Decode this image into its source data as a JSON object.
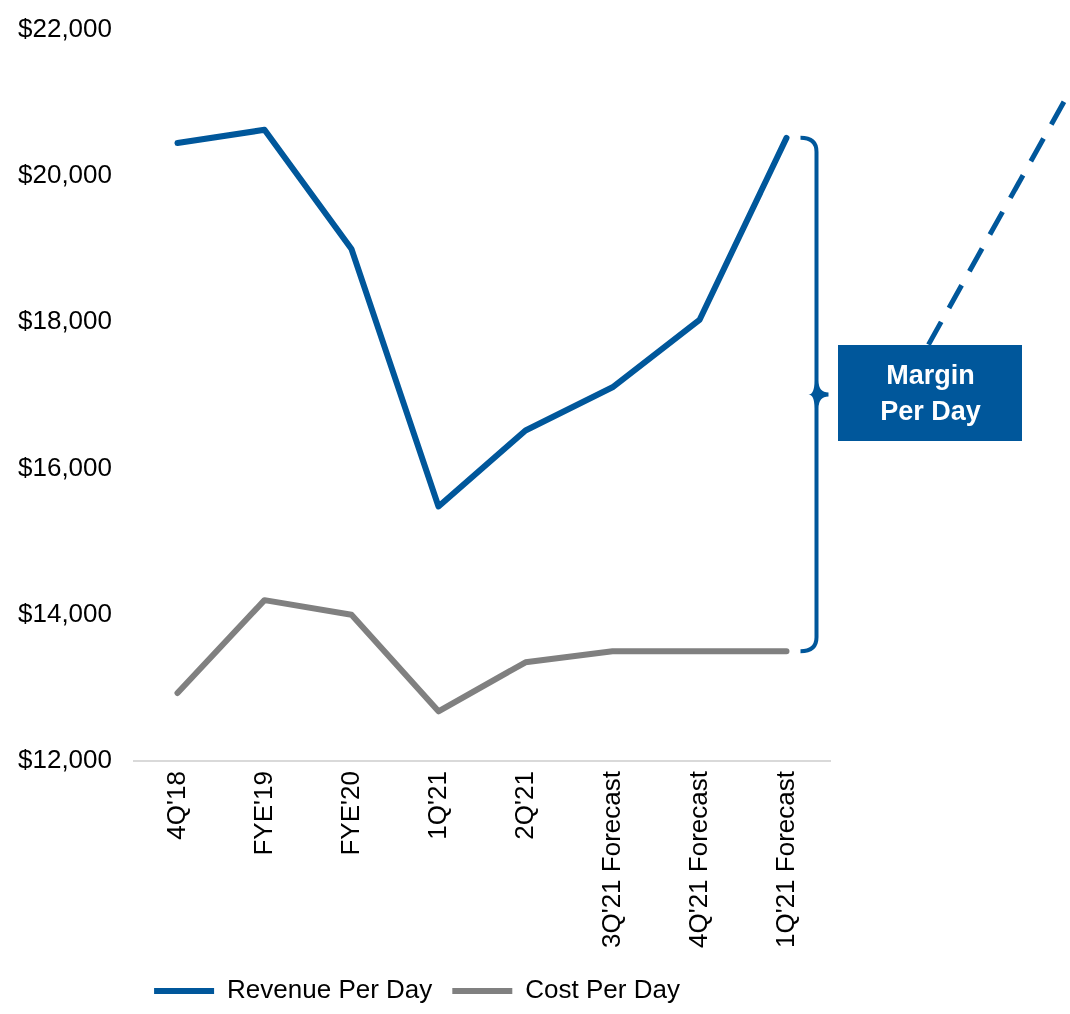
{
  "chart_data": {
    "type": "line",
    "categories": [
      "4Q'18",
      "FYE'19",
      "FYE'20",
      "1Q'21",
      "2Q'21",
      "3Q'21 Forecast",
      "4Q'21 Forecast",
      "1Q'21 Forecast"
    ],
    "series": [
      {
        "name": "Revenue Per Day",
        "color": "#00579b",
        "values": [
          20450,
          20630,
          19000,
          15480,
          16520,
          17110,
          18030,
          20520
        ]
      },
      {
        "name": "Cost Per Day",
        "color": "#808080",
        "values": [
          12930,
          14200,
          14000,
          12680,
          13350,
          13500,
          13500,
          13500
        ]
      }
    ],
    "ylim": [
      12000,
      22000
    ],
    "yticks": [
      {
        "value": 12000,
        "label": "$12,000"
      },
      {
        "value": 14000,
        "label": "$14,000"
      },
      {
        "value": 16000,
        "label": "$16,000"
      },
      {
        "value": 18000,
        "label": "$18,000"
      },
      {
        "value": 20000,
        "label": "$20,000"
      },
      {
        "value": 22000,
        "label": "$22,000"
      }
    ],
    "legend": "bottom",
    "marker": "none",
    "line_style": "solid",
    "annotations": [
      "Margin Per Day"
    ]
  }
}
